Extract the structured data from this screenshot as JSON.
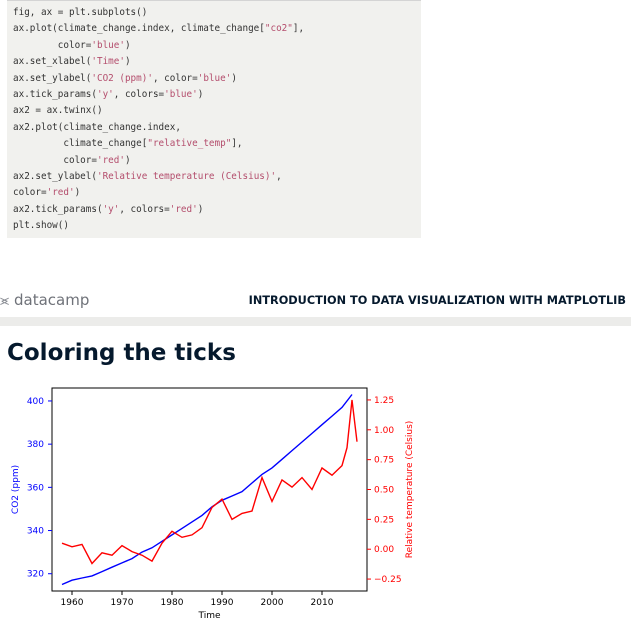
{
  "code": {
    "lines": [
      [
        {
          "t": "fig, ax = plt.subplots()"
        }
      ],
      [
        {
          "t": "ax.plot(climate_change.index, climate_change["
        },
        {
          "t": "\"co2\"",
          "s": 1
        },
        {
          "t": "],"
        }
      ],
      [
        {
          "t": "        color="
        },
        {
          "t": "'blue'",
          "s": 1
        },
        {
          "t": ")"
        }
      ],
      [
        {
          "t": "ax.set_xlabel("
        },
        {
          "t": "'Time'",
          "s": 1
        },
        {
          "t": ")"
        }
      ],
      [
        {
          "t": "ax.set_ylabel("
        },
        {
          "t": "'CO2 (ppm)'",
          "s": 1
        },
        {
          "t": ", color="
        },
        {
          "t": "'blue'",
          "s": 1
        },
        {
          "t": ")"
        }
      ],
      [
        {
          "t": "ax.tick_params("
        },
        {
          "t": "'y'",
          "s": 1
        },
        {
          "t": ", colors="
        },
        {
          "t": "'blue'",
          "s": 1
        },
        {
          "t": ")"
        }
      ],
      [
        {
          "t": "ax2 = ax.twinx()"
        }
      ],
      [
        {
          "t": "ax2.plot(climate_change.index,"
        }
      ],
      [
        {
          "t": "         climate_change["
        },
        {
          "t": "\"relative_temp\"",
          "s": 1
        },
        {
          "t": "],"
        }
      ],
      [
        {
          "t": "         color="
        },
        {
          "t": "'red'",
          "s": 1
        },
        {
          "t": ")"
        }
      ],
      [
        {
          "t": "ax2.set_ylabel("
        },
        {
          "t": "'Relative temperature (Celsius)'",
          "s": 1
        },
        {
          "t": ","
        }
      ],
      [
        {
          "t": "color="
        },
        {
          "t": "'red'",
          "s": 1
        },
        {
          "t": ")"
        }
      ],
      [
        {
          "t": "ax2.tick_params("
        },
        {
          "t": "'y'",
          "s": 1
        },
        {
          "t": ", colors="
        },
        {
          "t": "'red'",
          "s": 1
        },
        {
          "t": ")"
        }
      ],
      [
        {
          "t": "plt.show()"
        }
      ]
    ]
  },
  "header": {
    "logo_icon": "datacamp-logo-icon",
    "logo_text": "datacamp",
    "course_title": "INTRODUCTION TO DATA VISUALIZATION WITH MATPLOTLIB"
  },
  "slide": {
    "title": "Coloring the ticks"
  },
  "colors": {
    "co2": "#0000ff",
    "temp": "#ff0000",
    "code_bg": "#f1f1ee",
    "string": "#b44e6d",
    "title": "#05192d"
  },
  "chart_data": {
    "type": "line",
    "xlabel": "Time",
    "ylabel_left": "CO2 (ppm)",
    "ylabel_right": "Relative temperature (Celsius)",
    "xlim": [
      1956,
      2019
    ],
    "ylim_left": [
      312,
      406
    ],
    "ylim_right": [
      -0.35,
      1.35
    ],
    "x_ticks": [
      1960,
      1970,
      1980,
      1990,
      2000,
      2010
    ],
    "y_ticks_left": [
      320,
      340,
      360,
      380,
      400
    ],
    "y_ticks_right": [
      -0.25,
      0.0,
      0.25,
      0.5,
      0.75,
      1.0,
      1.25
    ],
    "tick_colors": {
      "left": "#0000ff",
      "right": "#ff0000"
    },
    "series": [
      {
        "name": "co2",
        "axis": "left",
        "color": "#0000ff",
        "x": [
          1958,
          1960,
          1962,
          1964,
          1966,
          1968,
          1970,
          1972,
          1974,
          1976,
          1978,
          1980,
          1982,
          1984,
          1986,
          1988,
          1990,
          1992,
          1994,
          1996,
          1998,
          2000,
          2002,
          2004,
          2006,
          2008,
          2010,
          2012,
          2014,
          2016
        ],
        "values": [
          315,
          317,
          318,
          319,
          321,
          323,
          325,
          327,
          330,
          332,
          335,
          338,
          341,
          344,
          347,
          351,
          354,
          356,
          358,
          362,
          366,
          369,
          373,
          377,
          381,
          385,
          389,
          393,
          397,
          403
        ]
      },
      {
        "name": "relative_temp",
        "axis": "right",
        "color": "#ff0000",
        "x": [
          1958,
          1960,
          1962,
          1964,
          1966,
          1968,
          1970,
          1972,
          1974,
          1976,
          1978,
          1980,
          1982,
          1984,
          1986,
          1988,
          1990,
          1992,
          1994,
          1996,
          1998,
          2000,
          2002,
          2004,
          2006,
          2008,
          2010,
          2012,
          2014,
          2015,
          2016,
          2017
        ],
        "values": [
          0.05,
          0.02,
          0.04,
          -0.12,
          -0.03,
          -0.05,
          0.03,
          -0.02,
          -0.05,
          -0.1,
          0.05,
          0.15,
          0.1,
          0.12,
          0.18,
          0.35,
          0.42,
          0.25,
          0.3,
          0.32,
          0.6,
          0.4,
          0.58,
          0.52,
          0.6,
          0.5,
          0.68,
          0.62,
          0.7,
          0.85,
          1.25,
          0.9
        ]
      }
    ]
  }
}
